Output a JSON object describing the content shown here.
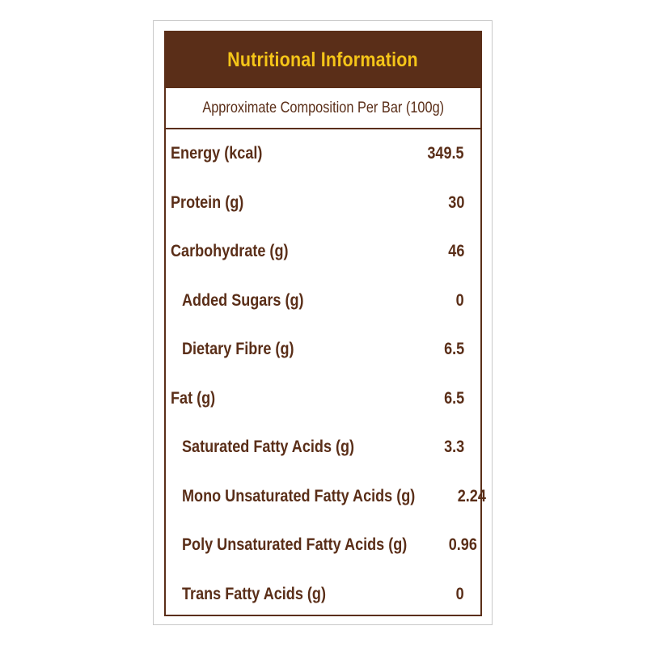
{
  "panel": {
    "title": "Nutritional Information",
    "subtitle": "Approximate Composition Per Bar (100g)",
    "colors": {
      "brown": "#5a2e18",
      "gold": "#f5c518"
    }
  },
  "rows": [
    {
      "label": "Energy (kcal)",
      "value": "349.5",
      "indent": false
    },
    {
      "label": "Protein (g)",
      "value": "30",
      "indent": false
    },
    {
      "label": "Carbohydrate (g)",
      "value": "46",
      "indent": false
    },
    {
      "label": "Added Sugars (g)",
      "value": "0",
      "indent": true
    },
    {
      "label": "Dietary Fibre (g)",
      "value": "6.5",
      "indent": true
    },
    {
      "label": "Fat (g)",
      "value": "6.5",
      "indent": false
    },
    {
      "label": "Saturated Fatty Acids (g)",
      "value": "3.3",
      "indent": true
    },
    {
      "label": "Mono Unsaturated Fatty Acids (g)",
      "value": "2.24",
      "indent": true
    },
    {
      "label": "Poly Unsaturated Fatty Acids (g)",
      "value": "0.96",
      "indent": true
    },
    {
      "label": "Trans Fatty Acids (g)",
      "value": "0",
      "indent": true
    }
  ]
}
